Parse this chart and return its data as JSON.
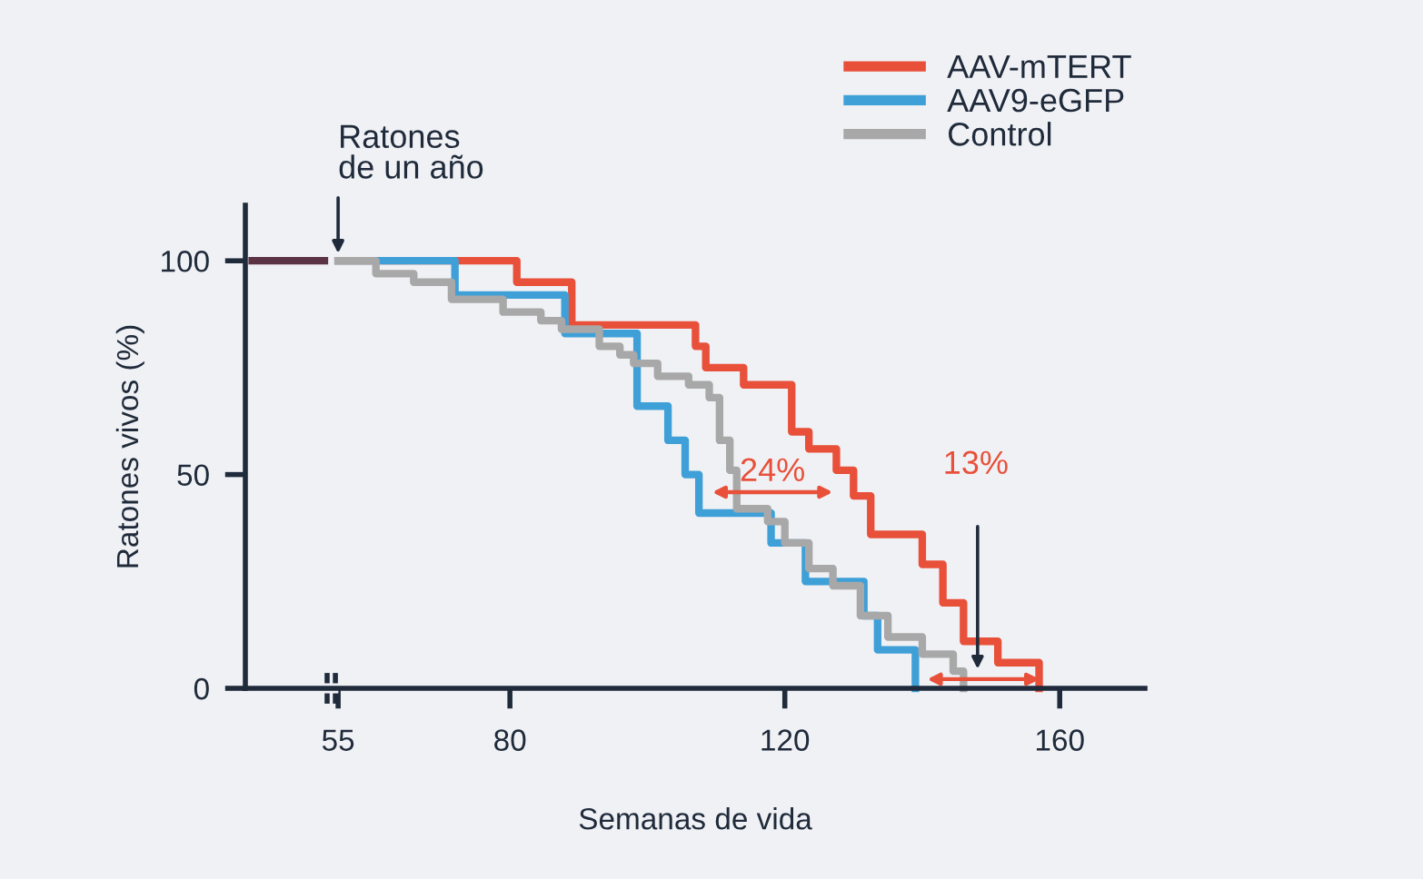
{
  "chart_data": {
    "type": "step",
    "xlabel": "Semanas de vida",
    "ylabel": "Ratones vivos (%)",
    "xlim": [
      41.5,
      172.4
    ],
    "xticks": [
      55,
      80,
      120,
      160
    ],
    "ylim": [
      0,
      113
    ],
    "yticks": [
      0,
      50,
      100
    ],
    "grid": false,
    "legend": "top right",
    "annotations": [
      {
        "text": "Ratones\nde un año",
        "x": 55,
        "y": 100
      },
      "24%",
      "13%"
    ],
    "series": [
      {
        "color": "#5c3343",
        "x": [
          42.5,
          53
        ],
        "values": [
          100,
          100
        ]
      },
      {
        "name": "AAV-mTERT",
        "color": "#e8503a",
        "x": [
          55,
          81,
          89,
          107,
          108.5,
          114,
          121,
          123.5,
          127.5,
          130,
          132.5,
          140,
          143,
          146,
          151,
          157
        ],
        "values": [
          100,
          95,
          85,
          80,
          75,
          71,
          60,
          56,
          51,
          45,
          36,
          29,
          20,
          11,
          6,
          0
        ]
      },
      {
        "name": "AAV9-eGFP",
        "color": "#3fa0d8",
        "x": [
          55,
          72,
          88,
          98.5,
          103,
          105.5,
          107.5,
          118,
          123,
          131.5,
          133.5,
          139
        ],
        "values": [
          100,
          92,
          83,
          66,
          58,
          50,
          41,
          34,
          25,
          17,
          9,
          0
        ]
      },
      {
        "name": "Control",
        "color": "#a8a8a8",
        "x": [
          55,
          60.5,
          66,
          71.5,
          79,
          84.5,
          87.5,
          93,
          96,
          98,
          101.5,
          106,
          109,
          110.5,
          112,
          113,
          117.5,
          120,
          123.5,
          127,
          131,
          135,
          140,
          144.5,
          146
        ],
        "values": [
          100,
          97,
          95,
          91,
          88,
          86,
          84,
          80,
          78,
          76,
          73,
          71,
          68,
          58,
          51,
          42,
          39,
          34,
          28,
          24,
          17,
          12,
          8,
          4,
          0
        ]
      }
    ]
  }
}
